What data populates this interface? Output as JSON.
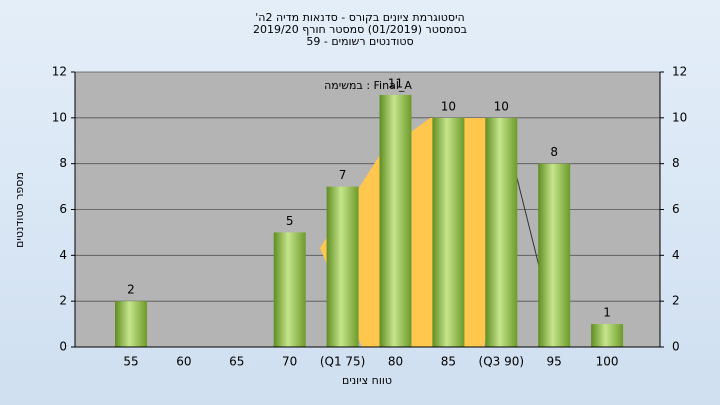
{
  "chart_data": {
    "type": "bar",
    "title": "היסטוגרמת ציונים בקורס - סדנאות מדיה 2ה'",
    "subtitle": "בסמסטר  (01/2019)  סמסטר חורף 2019/20",
    "note": "סטודנטים רשומים - 59",
    "annotation": "Final_A : במשימה",
    "x_label": "טווח ציונים",
    "y_label": "מספר סטודנטים",
    "categories": [
      "55",
      "60",
      "65",
      "70",
      "(Q1 75)",
      "80",
      "85",
      "(Q3 90)",
      "95",
      "100"
    ],
    "values": [
      2,
      0,
      0,
      5,
      7,
      11,
      10,
      10,
      8,
      1
    ],
    "color": "#8cc04a",
    "ylim": [
      0,
      12
    ],
    "yticks": [
      0,
      2,
      4,
      6,
      8,
      10,
      12
    ],
    "y2lim": [
      0,
      12
    ],
    "y2ticks": [
      0,
      2,
      4,
      6,
      8,
      10,
      12
    ],
    "grid": true
  }
}
